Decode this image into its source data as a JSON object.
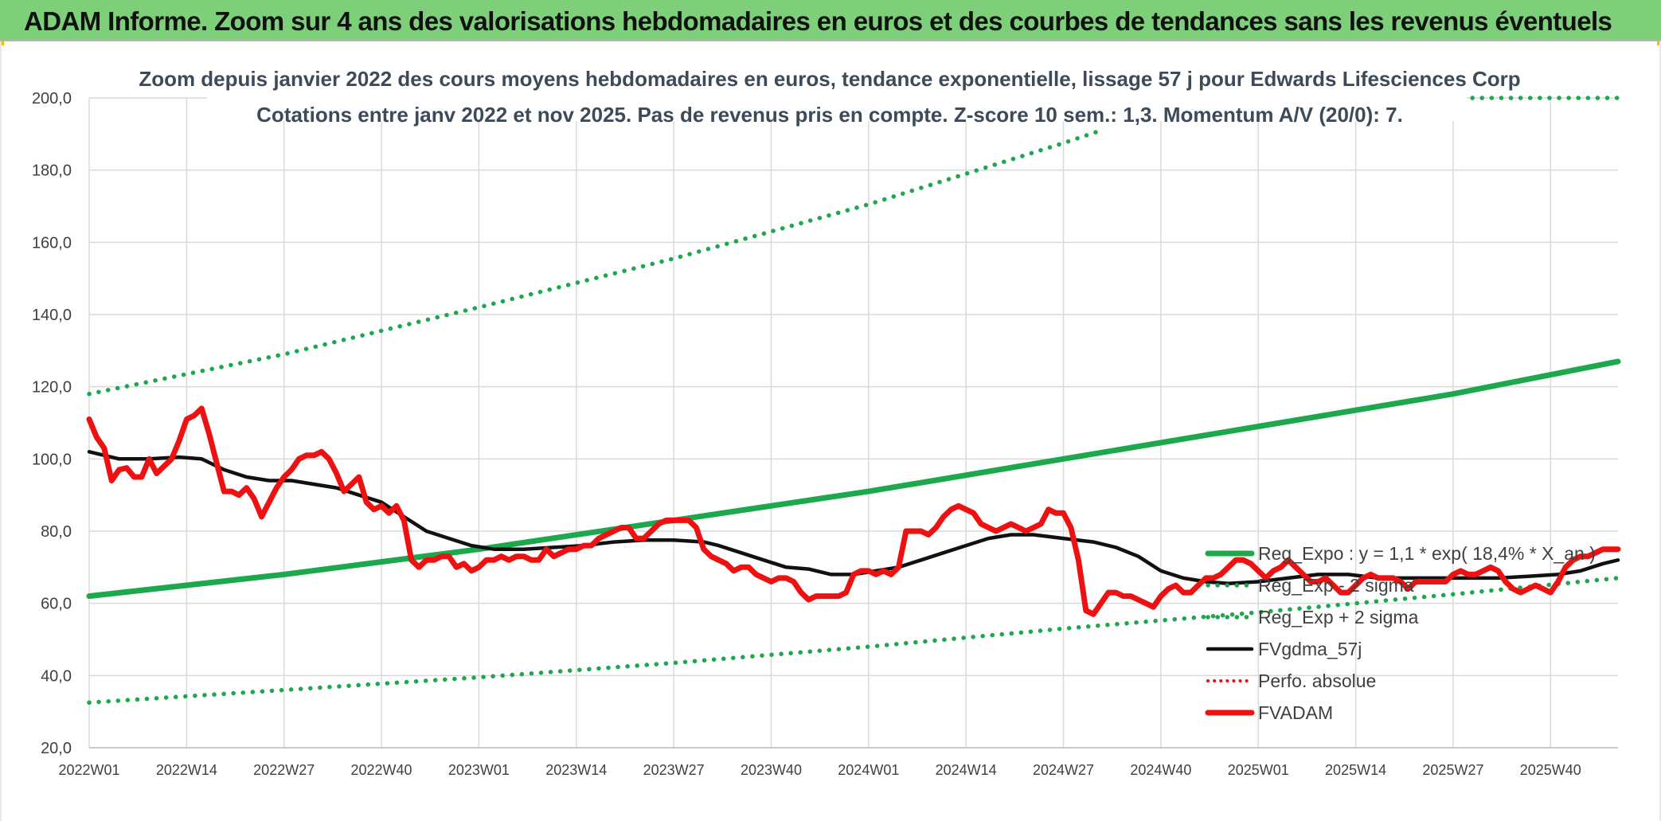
{
  "header": {
    "title": "ADAM Informe. Zoom sur 4 ans des valorisations hebdomadaires en euros et des courbes de tendances sans les revenus éventuels"
  },
  "colors": {
    "header_bg": "#7dcf79",
    "green": "#1ea84e",
    "red": "#ee1111",
    "black": "#111111",
    "grid": "#d9d9d9",
    "title_text": "#3c4a5a"
  },
  "chart_data": {
    "type": "line",
    "title_line1": "Zoom depuis janvier 2022 des cours moyens hebdomadaires en euros, tendance exponentielle, lissage 57 j pour Edwards Lifesciences Corp",
    "title_line2": "Cotations entre janv 2022 et nov 2025. Pas de revenus pris en compte. Z-score 10 sem.: 1,3. Momentum A/V (20/0): 7.",
    "ylim": [
      20,
      200
    ],
    "y_ticks": [
      "20,0",
      "40,0",
      "60,0",
      "80,0",
      "100,0",
      "120,0",
      "140,0",
      "160,0",
      "180,0",
      "200,0"
    ],
    "x_ticks": [
      "2022W01",
      "2022W14",
      "2022W27",
      "2022W40",
      "2023W01",
      "2023W14",
      "2023W27",
      "2023W40",
      "2024W01",
      "2024W14",
      "2024W27",
      "2024W40",
      "2025W01",
      "2025W14",
      "2025W27",
      "2025W40"
    ],
    "week_range": [
      0,
      204
    ],
    "grid": true,
    "legend_position": "right",
    "legend": [
      {
        "name": "Reg_Expo : y = 1,1 * exp( 18,4% *  X_an )",
        "style": "solid-green"
      },
      {
        "name": "Reg_Exp - 2 sigma",
        "style": "dotted-green"
      },
      {
        "name": "Reg_Exp + 2 sigma",
        "style": "dotted-green"
      },
      {
        "name": "FVgdma_57j",
        "style": "solid-black"
      },
      {
        "name": "Perfo. absolue",
        "style": "dotted-red"
      },
      {
        "name": "FVADAM",
        "style": "solid-red"
      }
    ],
    "series": [
      {
        "name": "Reg_Expo : y = 1,1 * exp( 18,4% *  X_an )",
        "points": [
          [
            0,
            62
          ],
          [
            26,
            68
          ],
          [
            52,
            75
          ],
          [
            78,
            83
          ],
          [
            104,
            91
          ],
          [
            130,
            100
          ],
          [
            156,
            109
          ],
          [
            182,
            118
          ],
          [
            204,
            127
          ]
        ]
      },
      {
        "name": "Reg_Exp - 2 sigma",
        "points": [
          [
            0,
            32.5
          ],
          [
            26,
            36
          ],
          [
            52,
            39.5
          ],
          [
            78,
            43.5
          ],
          [
            104,
            48
          ],
          [
            130,
            53
          ],
          [
            156,
            57.5
          ],
          [
            182,
            62.5
          ],
          [
            204,
            67
          ]
        ]
      },
      {
        "name": "Reg_Exp + 2 sigma",
        "points": [
          [
            0,
            118
          ],
          [
            26,
            129
          ],
          [
            52,
            142
          ],
          [
            78,
            155.5
          ],
          [
            104,
            170.5
          ],
          [
            130,
            187.5
          ],
          [
            135,
            191
          ]
        ]
      },
      {
        "name": "Reg_Exp + 2 sigma (plafond)",
        "points": [
          [
            182,
            200
          ],
          [
            204,
            200
          ]
        ]
      },
      {
        "name": "FVgdma_57j",
        "points": [
          [
            0,
            102
          ],
          [
            4,
            100
          ],
          [
            8,
            100
          ],
          [
            12,
            100.5
          ],
          [
            15,
            100
          ],
          [
            18,
            97
          ],
          [
            21,
            95
          ],
          [
            24,
            94
          ],
          [
            27,
            94
          ],
          [
            30,
            93
          ],
          [
            33,
            92
          ],
          [
            36,
            90
          ],
          [
            39,
            88
          ],
          [
            42,
            84
          ],
          [
            45,
            80
          ],
          [
            48,
            78
          ],
          [
            51,
            76
          ],
          [
            54,
            75
          ],
          [
            58,
            75
          ],
          [
            62,
            75.5
          ],
          [
            66,
            76
          ],
          [
            70,
            77
          ],
          [
            74,
            77.5
          ],
          [
            78,
            77.5
          ],
          [
            82,
            77
          ],
          [
            84,
            76
          ],
          [
            87,
            74
          ],
          [
            90,
            72
          ],
          [
            93,
            70
          ],
          [
            96,
            69.5
          ],
          [
            99,
            68
          ],
          [
            102,
            68
          ],
          [
            105,
            69
          ],
          [
            108,
            70
          ],
          [
            111,
            72
          ],
          [
            114,
            74
          ],
          [
            117,
            76
          ],
          [
            120,
            78
          ],
          [
            123,
            79
          ],
          [
            126,
            79
          ],
          [
            130,
            78
          ],
          [
            134,
            77
          ],
          [
            137,
            75.5
          ],
          [
            140,
            73
          ],
          [
            143,
            69
          ],
          [
            146,
            67
          ],
          [
            149,
            66
          ],
          [
            152,
            65.5
          ],
          [
            156,
            66
          ],
          [
            160,
            67
          ],
          [
            164,
            68
          ],
          [
            168,
            68
          ],
          [
            172,
            67
          ],
          [
            176,
            67
          ],
          [
            180,
            67
          ],
          [
            184,
            67
          ],
          [
            188,
            67
          ],
          [
            192,
            67.5
          ],
          [
            196,
            68
          ],
          [
            199,
            69
          ],
          [
            202,
            71
          ],
          [
            204,
            72
          ]
        ]
      },
      {
        "name": "FVADAM",
        "points": [
          [
            0,
            111
          ],
          [
            1,
            106
          ],
          [
            2,
            103
          ],
          [
            3,
            94
          ],
          [
            4,
            97
          ],
          [
            5,
            97.5
          ],
          [
            6,
            95
          ],
          [
            7,
            95
          ],
          [
            8,
            100
          ],
          [
            9,
            96
          ],
          [
            10,
            98
          ],
          [
            11,
            100
          ],
          [
            12,
            105
          ],
          [
            13,
            111
          ],
          [
            14,
            112
          ],
          [
            15,
            114
          ],
          [
            16,
            107
          ],
          [
            17,
            99
          ],
          [
            18,
            91
          ],
          [
            19,
            91
          ],
          [
            20,
            90
          ],
          [
            21,
            92
          ],
          [
            22,
            89
          ],
          [
            23,
            84
          ],
          [
            24,
            88
          ],
          [
            25,
            92
          ],
          [
            26,
            95
          ],
          [
            27,
            97
          ],
          [
            28,
            100
          ],
          [
            29,
            101
          ],
          [
            30,
            101
          ],
          [
            31,
            102
          ],
          [
            32,
            100
          ],
          [
            33,
            96
          ],
          [
            34,
            91
          ],
          [
            35,
            93
          ],
          [
            36,
            95
          ],
          [
            37,
            88
          ],
          [
            38,
            86
          ],
          [
            39,
            87
          ],
          [
            40,
            85
          ],
          [
            41,
            87
          ],
          [
            42,
            83
          ],
          [
            43,
            72
          ],
          [
            44,
            70
          ],
          [
            45,
            72
          ],
          [
            46,
            72
          ],
          [
            47,
            73
          ],
          [
            48,
            73
          ],
          [
            49,
            70
          ],
          [
            50,
            71
          ],
          [
            51,
            69
          ],
          [
            52,
            70
          ],
          [
            53,
            72
          ],
          [
            54,
            72
          ],
          [
            55,
            73
          ],
          [
            56,
            72
          ],
          [
            57,
            73
          ],
          [
            58,
            73
          ],
          [
            59,
            72
          ],
          [
            60,
            72
          ],
          [
            61,
            75
          ],
          [
            62,
            73
          ],
          [
            63,
            74
          ],
          [
            64,
            75
          ],
          [
            65,
            75
          ],
          [
            66,
            76
          ],
          [
            67,
            76
          ],
          [
            68,
            78
          ],
          [
            69,
            79
          ],
          [
            70,
            80
          ],
          [
            71,
            81
          ],
          [
            72,
            81
          ],
          [
            73,
            78
          ],
          [
            74,
            78
          ],
          [
            75,
            80
          ],
          [
            76,
            82
          ],
          [
            77,
            83
          ],
          [
            78,
            83
          ],
          [
            79,
            83
          ],
          [
            80,
            83
          ],
          [
            81,
            81
          ],
          [
            82,
            75
          ],
          [
            83,
            73
          ],
          [
            84,
            72
          ],
          [
            85,
            71
          ],
          [
            86,
            69
          ],
          [
            87,
            70
          ],
          [
            88,
            70
          ],
          [
            89,
            68
          ],
          [
            90,
            67
          ],
          [
            91,
            66
          ],
          [
            92,
            67
          ],
          [
            93,
            67
          ],
          [
            94,
            66
          ],
          [
            95,
            63
          ],
          [
            96,
            61
          ],
          [
            97,
            62
          ],
          [
            98,
            62
          ],
          [
            99,
            62
          ],
          [
            100,
            62
          ],
          [
            101,
            63
          ],
          [
            102,
            68
          ],
          [
            103,
            69
          ],
          [
            104,
            69
          ],
          [
            105,
            68
          ],
          [
            106,
            69
          ],
          [
            107,
            68
          ],
          [
            108,
            70
          ],
          [
            109,
            80
          ],
          [
            110,
            80
          ],
          [
            111,
            80
          ],
          [
            112,
            79
          ],
          [
            113,
            81
          ],
          [
            114,
            84
          ],
          [
            115,
            86
          ],
          [
            116,
            87
          ],
          [
            117,
            86
          ],
          [
            118,
            85
          ],
          [
            119,
            82
          ],
          [
            120,
            81
          ],
          [
            121,
            80
          ],
          [
            122,
            81
          ],
          [
            123,
            82
          ],
          [
            124,
            81
          ],
          [
            125,
            80
          ],
          [
            126,
            81
          ],
          [
            127,
            82
          ],
          [
            128,
            86
          ],
          [
            129,
            85
          ],
          [
            130,
            85
          ],
          [
            131,
            81
          ],
          [
            132,
            72
          ],
          [
            133,
            58
          ],
          [
            134,
            57
          ],
          [
            135,
            60
          ],
          [
            136,
            63
          ],
          [
            137,
            63
          ],
          [
            138,
            62
          ],
          [
            139,
            62
          ],
          [
            140,
            61
          ],
          [
            141,
            60
          ],
          [
            142,
            59
          ],
          [
            143,
            62
          ],
          [
            144,
            64
          ],
          [
            145,
            65
          ],
          [
            146,
            63
          ],
          [
            147,
            63
          ],
          [
            148,
            65
          ],
          [
            149,
            67
          ],
          [
            150,
            67
          ],
          [
            151,
            68
          ],
          [
            152,
            70
          ],
          [
            153,
            72
          ],
          [
            154,
            72
          ],
          [
            155,
            71
          ],
          [
            156,
            69
          ],
          [
            157,
            67
          ],
          [
            158,
            69
          ],
          [
            159,
            70
          ],
          [
            160,
            72
          ],
          [
            161,
            70
          ],
          [
            162,
            68
          ],
          [
            163,
            66
          ],
          [
            164,
            66
          ],
          [
            165,
            67
          ],
          [
            166,
            65
          ],
          [
            167,
            63
          ],
          [
            168,
            63
          ],
          [
            169,
            65
          ],
          [
            170,
            67
          ],
          [
            171,
            68
          ],
          [
            172,
            67
          ],
          [
            173,
            67
          ],
          [
            174,
            67
          ],
          [
            175,
            66
          ],
          [
            176,
            64
          ],
          [
            177,
            66
          ],
          [
            178,
            66
          ],
          [
            179,
            66
          ],
          [
            180,
            66
          ],
          [
            181,
            66
          ],
          [
            182,
            68
          ],
          [
            183,
            69
          ],
          [
            184,
            68
          ],
          [
            185,
            68
          ],
          [
            186,
            69
          ],
          [
            187,
            70
          ],
          [
            188,
            69
          ],
          [
            189,
            66
          ],
          [
            190,
            64
          ],
          [
            191,
            63
          ],
          [
            192,
            64
          ],
          [
            193,
            65
          ],
          [
            194,
            64
          ],
          [
            195,
            63
          ],
          [
            196,
            66
          ],
          [
            197,
            70
          ],
          [
            198,
            72
          ],
          [
            199,
            73
          ],
          [
            200,
            73
          ],
          [
            201,
            74
          ],
          [
            202,
            75
          ],
          [
            203,
            75
          ],
          [
            204,
            75
          ]
        ]
      }
    ]
  }
}
